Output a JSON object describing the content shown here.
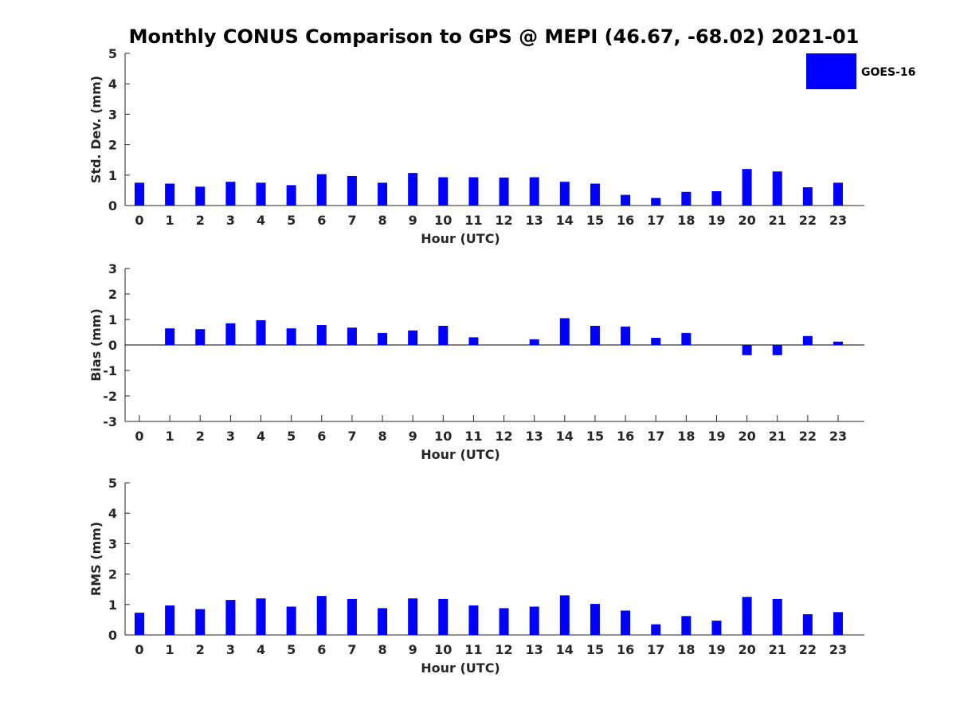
{
  "figure_title": "Monthly CONUS Comparison to GPS @ MEPI (46.67, -68.02) 2021-01",
  "legend": {
    "label": "GOES-16",
    "color": "#0000ff"
  },
  "chart_data": [
    {
      "type": "bar",
      "categories": [
        "0",
        "1",
        "2",
        "3",
        "4",
        "5",
        "6",
        "7",
        "8",
        "9",
        "10",
        "11",
        "12",
        "13",
        "14",
        "15",
        "16",
        "17",
        "18",
        "19",
        "20",
        "21",
        "22",
        "23"
      ],
      "values": [
        0.75,
        0.72,
        0.62,
        0.78,
        0.75,
        0.67,
        1.03,
        0.97,
        0.75,
        1.07,
        0.93,
        0.93,
        0.92,
        0.93,
        0.78,
        0.72,
        0.35,
        0.25,
        0.45,
        0.47,
        1.2,
        1.12,
        0.6,
        0.75
      ],
      "series_name": "GOES-16",
      "xlabel": "Hour (UTC)",
      "ylabel": "Std. Dev. (mm)",
      "ylim": [
        0,
        5
      ],
      "yticks": [
        "0",
        "1",
        "2",
        "3",
        "4",
        "5"
      ],
      "grid": false,
      "legend_position": "top-right"
    },
    {
      "type": "bar",
      "categories": [
        "0",
        "1",
        "2",
        "3",
        "4",
        "5",
        "6",
        "7",
        "8",
        "9",
        "10",
        "11",
        "12",
        "13",
        "14",
        "15",
        "16",
        "17",
        "18",
        "19",
        "20",
        "21",
        "22",
        "23"
      ],
      "values": [
        0.0,
        0.65,
        0.62,
        0.85,
        0.97,
        0.65,
        0.78,
        0.68,
        0.47,
        0.57,
        0.75,
        0.3,
        0.0,
        0.22,
        1.05,
        0.75,
        0.72,
        0.28,
        0.47,
        0.0,
        -0.4,
        -0.4,
        0.35,
        0.13
      ],
      "series_name": "GOES-16",
      "xlabel": "Hour (UTC)",
      "ylabel": "Bias (mm)",
      "ylim": [
        -3,
        3
      ],
      "yticks": [
        "-3",
        "-2",
        "-1",
        "0",
        "1",
        "2",
        "3"
      ],
      "grid": false
    },
    {
      "type": "bar",
      "categories": [
        "0",
        "1",
        "2",
        "3",
        "4",
        "5",
        "6",
        "7",
        "8",
        "9",
        "10",
        "11",
        "12",
        "13",
        "14",
        "15",
        "16",
        "17",
        "18",
        "19",
        "20",
        "21",
        "22",
        "23"
      ],
      "values": [
        0.73,
        0.97,
        0.85,
        1.15,
        1.2,
        0.93,
        1.28,
        1.18,
        0.88,
        1.2,
        1.18,
        0.97,
        0.88,
        0.93,
        1.3,
        1.02,
        0.8,
        0.35,
        0.62,
        0.47,
        1.25,
        1.18,
        0.68,
        0.75
      ],
      "series_name": "GOES-16",
      "xlabel": "Hour (UTC)",
      "ylabel": "RMS (mm)",
      "ylim": [
        0,
        5
      ],
      "yticks": [
        "0",
        "1",
        "2",
        "3",
        "4",
        "5"
      ],
      "grid": false
    }
  ]
}
